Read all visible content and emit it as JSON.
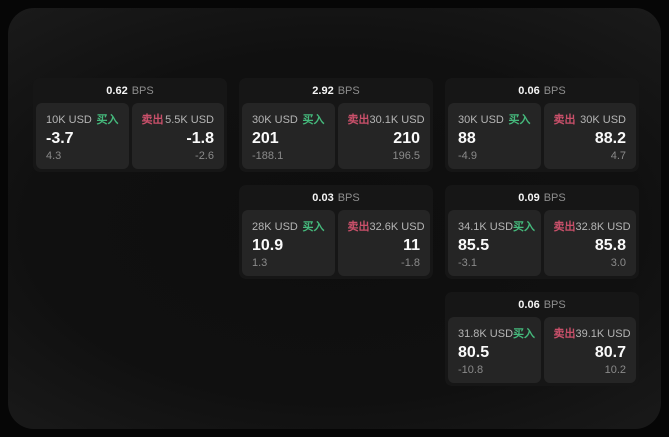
{
  "labels": {
    "bps_suffix": "BPS",
    "buy": "买入",
    "sell": "卖出"
  },
  "colors": {
    "buy": "#45b97c",
    "sell": "#c9506a",
    "card_background": "#161616",
    "tile_background": "#252525",
    "value_text": "#fafafa",
    "muted_text": "#8a8a8a"
  },
  "cards": [
    {
      "bps": "0.62",
      "grid": {
        "row": 1,
        "col": 1
      },
      "buy": {
        "amount": "10K USD",
        "value": "-3.7",
        "delta": "4.3"
      },
      "sell": {
        "amount": "5.5K USD",
        "value": "-1.8",
        "delta": "-2.6"
      }
    },
    {
      "bps": "2.92",
      "grid": {
        "row": 1,
        "col": 2
      },
      "buy": {
        "amount": "30K USD",
        "value": "201",
        "delta": "-188.1"
      },
      "sell": {
        "amount": "30.1K USD",
        "value": "210",
        "delta": "196.5"
      }
    },
    {
      "bps": "0.06",
      "grid": {
        "row": 1,
        "col": 3
      },
      "buy": {
        "amount": "30K USD",
        "value": "88",
        "delta": "-4.9"
      },
      "sell": {
        "amount": "30K USD",
        "value": "88.2",
        "delta": "4.7"
      }
    },
    {
      "bps": "0.03",
      "grid": {
        "row": 2,
        "col": 2
      },
      "buy": {
        "amount": "28K USD",
        "value": "10.9",
        "delta": "1.3"
      },
      "sell": {
        "amount": "32.6K USD",
        "value": "11",
        "delta": "-1.8"
      }
    },
    {
      "bps": "0.09",
      "grid": {
        "row": 2,
        "col": 3
      },
      "buy": {
        "amount": "34.1K USD",
        "value": "85.5",
        "delta": "-3.1"
      },
      "sell": {
        "amount": "32.8K USD",
        "value": "85.8",
        "delta": "3.0"
      }
    },
    {
      "bps": "0.06",
      "grid": {
        "row": 3,
        "col": 3
      },
      "buy": {
        "amount": "31.8K USD",
        "value": "80.5",
        "delta": "-10.8"
      },
      "sell": {
        "amount": "39.1K USD",
        "value": "80.7",
        "delta": "10.2"
      }
    }
  ]
}
